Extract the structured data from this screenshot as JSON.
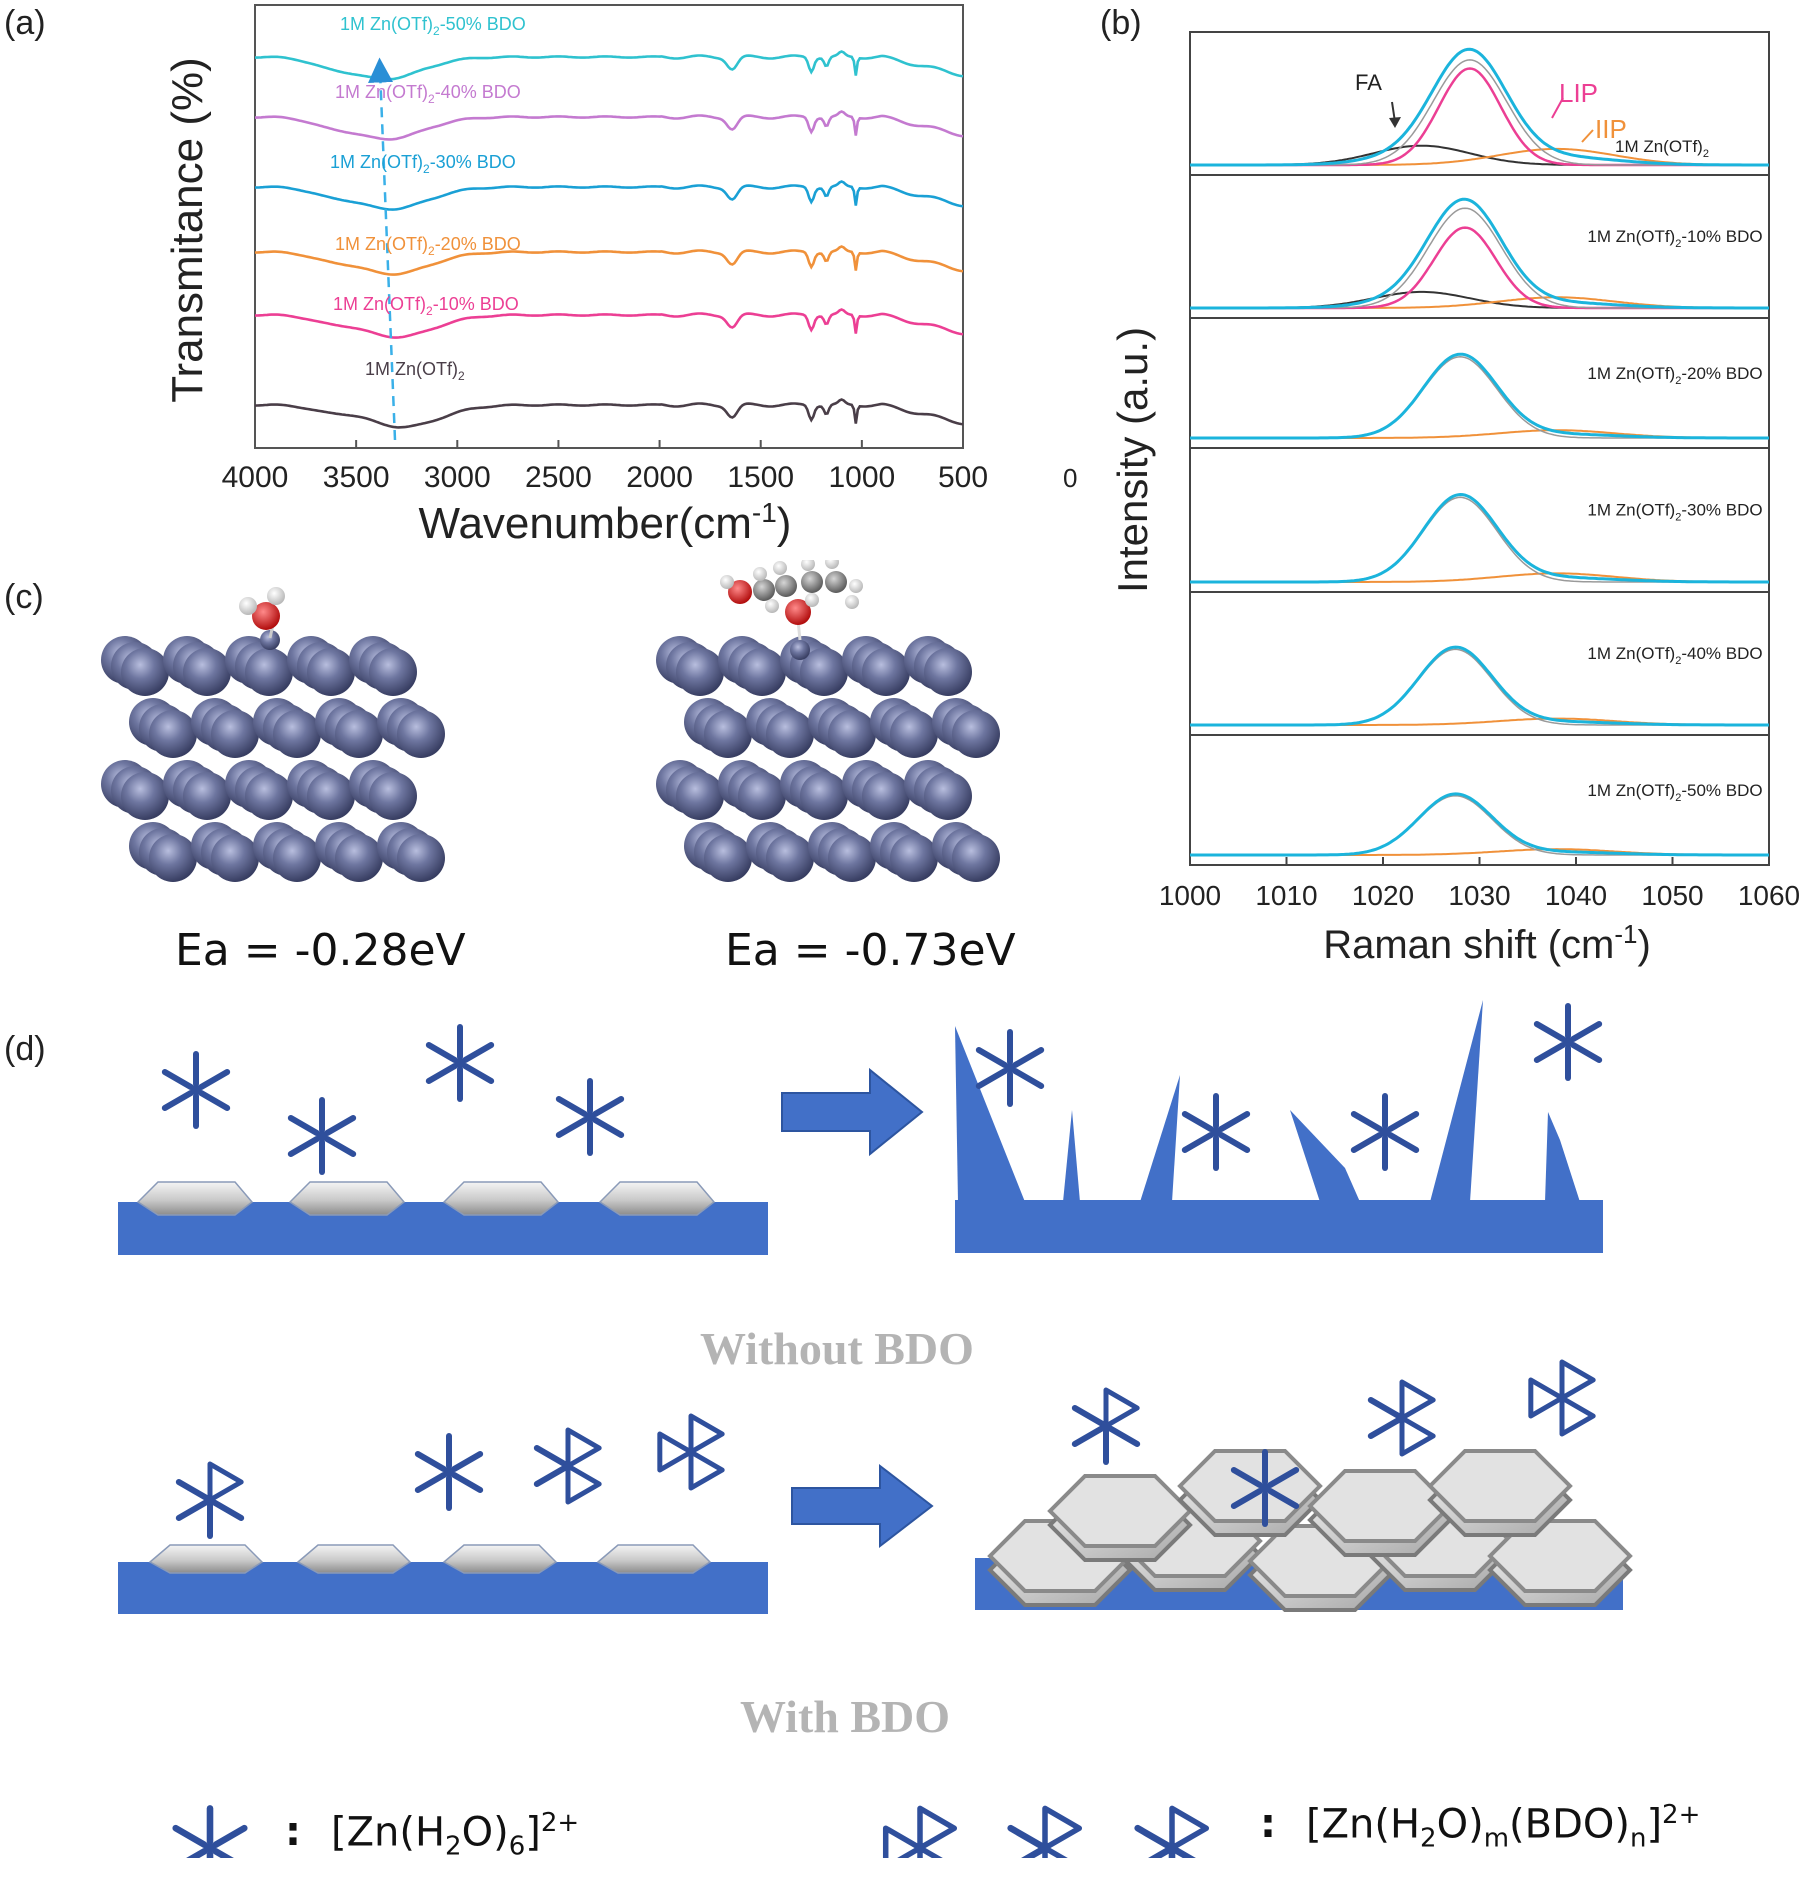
{
  "panels": {
    "a": {
      "label": "(a)"
    },
    "b": {
      "label": "(b)"
    },
    "c": {
      "label": "(c)"
    },
    "d": {
      "label": "(d)"
    }
  },
  "colors": {
    "cyan50": "#2fc2cf",
    "purple40": "#c47ad0",
    "blue30": "#1aa0d5",
    "orange20": "#f0913a",
    "pink10": "#ec3f94",
    "black": "#4a3e48",
    "zn": "#5e6690",
    "scheme_blue": "#4270c8",
    "complex_blue": "#2f4f9c"
  },
  "chart_data": [
    {
      "type": "line",
      "panel": "a",
      "ylabel": "Transmitance (%)",
      "xlabel": "Wavenumber(cm",
      "xlabel_sup": "-1",
      "xlabel_close": ")",
      "x_ticks": [
        "4000",
        "3500",
        "3000",
        "2500",
        "2000",
        "1500",
        "1000",
        "500"
      ],
      "extra_tick": "0",
      "xlim": [
        4000,
        500
      ],
      "series": [
        {
          "name": "1M Zn(OTf)2-50% BDO",
          "label_main": "1M Zn(OTf)",
          "label_sub": "2",
          "label_tail": "-50% BDO",
          "color": "#2fc2cf"
        },
        {
          "name": "1M Zn(OTf)2-40% BDO",
          "label_main": "1M Zn(OTf)",
          "label_sub": "2",
          "label_tail": "-40% BDO",
          "color": "#c47ad0"
        },
        {
          "name": "1M Zn(OTf)2-30% BDO",
          "label_main": "1M Zn(OTf)",
          "label_sub": "2",
          "label_tail": "-30% BDO",
          "color": "#1aa0d5"
        },
        {
          "name": "1M Zn(OTf)2-20% BDO",
          "label_main": "1M Zn(OTf)",
          "label_sub": "2",
          "label_tail": "-20% BDO",
          "color": "#f0913a"
        },
        {
          "name": "1M Zn(OTf)2-10% BDO",
          "label_main": "1M Zn(OTf)",
          "label_sub": "2",
          "label_tail": "-10% BDO",
          "color": "#ec3f94"
        },
        {
          "name": "1M Zn(OTf)2",
          "label_main": "1M Zn(OTf)",
          "label_sub": "2",
          "label_tail": "",
          "color": "#4a3e48"
        }
      ],
      "oh_band_min_cm": [
        3360,
        3350,
        3330,
        3320,
        3300,
        3270
      ]
    },
    {
      "type": "line",
      "panel": "b",
      "ylabel": "Intensity (a.u.)",
      "xlabel": "Raman shift (cm",
      "xlabel_sup": "-1",
      "xlabel_close": ")",
      "x_ticks": [
        "1000",
        "1010",
        "1020",
        "1030",
        "1040",
        "1050",
        "1060"
      ],
      "xlim": [
        1000,
        1060
      ],
      "annotations": {
        "fa": "FA",
        "lip": "LIP",
        "iip": "IIP"
      },
      "subplots": [
        {
          "label_main": "1M Zn(OTf)",
          "label_sub": "2",
          "label_tail": "",
          "peak": 1029,
          "total": 1.0,
          "lip": 0.9,
          "fa": 0.18,
          "iip": 0.15
        },
        {
          "label_main": "1M Zn(OTf)",
          "label_sub": "2",
          "label_tail": "-10% BDO",
          "peak": 1028.5,
          "total": 0.95,
          "lip": 0.75,
          "fa": 0.15,
          "iip": 0.1
        },
        {
          "label_main": "1M Zn(OTf)",
          "label_sub": "2",
          "label_tail": "-20% BDO",
          "peak": 1028,
          "total": 0.85,
          "lip": 0.0,
          "fa": 0.0,
          "iip": 0.08
        },
        {
          "label_main": "1M Zn(OTf)",
          "label_sub": "2",
          "label_tail": "-30% BDO",
          "peak": 1028,
          "total": 0.8,
          "lip": 0.0,
          "fa": 0.0,
          "iip": 0.08
        },
        {
          "label_main": "1M Zn(OTf)",
          "label_sub": "2",
          "label_tail": "-40% BDO",
          "peak": 1027.5,
          "total": 0.72,
          "lip": 0.0,
          "fa": 0.0,
          "iip": 0.06
        },
        {
          "label_main": "1M Zn(OTf)",
          "label_sub": "2",
          "label_tail": "-50% BDO",
          "peak": 1027.5,
          "total": 0.62,
          "lip": 0.0,
          "fa": 0.0,
          "iip": 0.06
        }
      ]
    }
  ],
  "panel_c": {
    "ea_left": "Ea = -0.28eV",
    "ea_right": "Ea = -0.73eV"
  },
  "panel_d": {
    "without_caption": "Without BDO",
    "with_caption": "With BDO",
    "legend": {
      "colon": ":",
      "left_formula": "[Zn(H",
      "left_sub1": "2",
      "left_mid": "O)",
      "left_sub2": "6",
      "left_close": "]",
      "left_sup": "2+",
      "right_formula": "[Zn(H",
      "right_sub1": "2",
      "right_mid1": "O)",
      "right_sub2": "m",
      "right_mid2": "(BDO)",
      "right_sub3": "n",
      "right_close": "]",
      "right_sup": "2+"
    }
  }
}
